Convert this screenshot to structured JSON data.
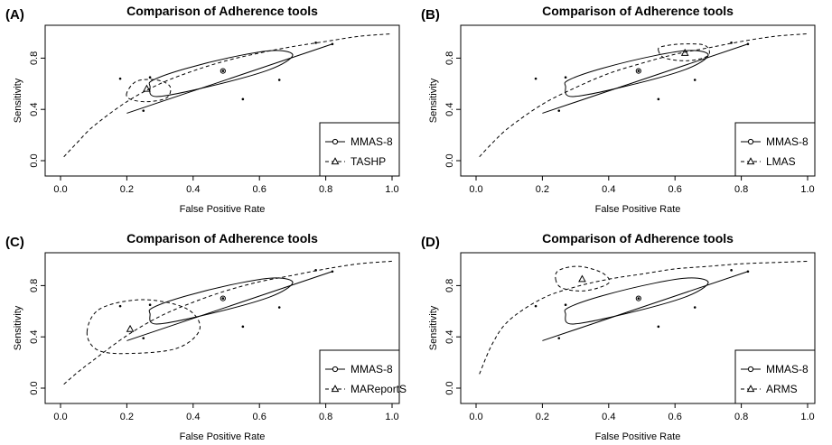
{
  "chart_data": [
    {
      "type": "scatter",
      "panel_label": "(A)",
      "title": "Comparison of Adherence tools",
      "xlabel": "False Positive Rate",
      "ylabel": "Sensitivity",
      "xlim": [
        0,
        1
      ],
      "ylim": [
        0,
        1
      ],
      "xticks": [
        "0.0",
        "0.2",
        "0.4",
        "0.6",
        "0.8",
        "1.0"
      ],
      "yticks": [
        "0.0",
        "0.4",
        "0.8"
      ],
      "legend_position": "bottom-right",
      "legend": [
        "MMAS-8",
        "TASHP"
      ],
      "study_points": [
        [
          0.18,
          0.64
        ],
        [
          0.25,
          0.39
        ],
        [
          0.27,
          0.65
        ],
        [
          0.49,
          0.7
        ],
        [
          0.55,
          0.48
        ],
        [
          0.66,
          0.63
        ],
        [
          0.77,
          0.92
        ],
        [
          0.82,
          0.91
        ]
      ],
      "mmas_summary": {
        "x": 0.49,
        "y": 0.7,
        "ellipse": [
          [
            0.27,
            0.58
          ],
          [
            0.29,
            0.5
          ],
          [
            0.45,
            0.58
          ],
          [
            0.63,
            0.71
          ],
          [
            0.7,
            0.82
          ],
          [
            0.65,
            0.86
          ],
          [
            0.54,
            0.82
          ],
          [
            0.38,
            0.72
          ],
          [
            0.28,
            0.63
          ]
        ]
      },
      "mmas_line": [
        [
          0.2,
          0.37
        ],
        [
          0.82,
          0.91
        ]
      ],
      "comp_summary": {
        "x": 0.26,
        "y": 0.56,
        "ellipse": [
          [
            0.2,
            0.53
          ],
          [
            0.21,
            0.48
          ],
          [
            0.26,
            0.46
          ],
          [
            0.32,
            0.49
          ],
          [
            0.33,
            0.58
          ],
          [
            0.29,
            0.63
          ],
          [
            0.23,
            0.62
          ]
        ]
      },
      "comp_curve": [
        [
          0.01,
          0.03
        ],
        [
          0.05,
          0.14
        ],
        [
          0.1,
          0.27
        ],
        [
          0.2,
          0.46
        ],
        [
          0.3,
          0.6
        ],
        [
          0.4,
          0.7
        ],
        [
          0.5,
          0.78
        ],
        [
          0.6,
          0.84
        ],
        [
          0.7,
          0.89
        ],
        [
          0.8,
          0.93
        ],
        [
          0.9,
          0.97
        ],
        [
          1.0,
          0.99
        ]
      ]
    },
    {
      "type": "scatter",
      "panel_label": "(B)",
      "title": "Comparison of Adherence tools",
      "xlabel": "False Positive Rate",
      "ylabel": "Sensitivity",
      "xlim": [
        0,
        1
      ],
      "ylim": [
        0,
        1
      ],
      "xticks": [
        "0.0",
        "0.2",
        "0.4",
        "0.6",
        "0.8",
        "1.0"
      ],
      "yticks": [
        "0.0",
        "0.4",
        "0.8"
      ],
      "legend_position": "bottom-right",
      "legend": [
        "MMAS-8",
        "LMAS"
      ],
      "study_points": [
        [
          0.18,
          0.64
        ],
        [
          0.25,
          0.39
        ],
        [
          0.27,
          0.65
        ],
        [
          0.49,
          0.7
        ],
        [
          0.55,
          0.48
        ],
        [
          0.66,
          0.63
        ],
        [
          0.77,
          0.92
        ],
        [
          0.82,
          0.91
        ]
      ],
      "mmas_summary": {
        "x": 0.49,
        "y": 0.7,
        "ellipse": [
          [
            0.27,
            0.58
          ],
          [
            0.29,
            0.5
          ],
          [
            0.45,
            0.58
          ],
          [
            0.63,
            0.71
          ],
          [
            0.7,
            0.82
          ],
          [
            0.65,
            0.86
          ],
          [
            0.54,
            0.82
          ],
          [
            0.38,
            0.72
          ],
          [
            0.28,
            0.63
          ]
        ]
      },
      "mmas_line": [
        [
          0.2,
          0.37
        ],
        [
          0.82,
          0.91
        ]
      ],
      "comp_summary": {
        "x": 0.63,
        "y": 0.84,
        "ellipse": [
          [
            0.55,
            0.86
          ],
          [
            0.57,
            0.8
          ],
          [
            0.64,
            0.78
          ],
          [
            0.7,
            0.82
          ],
          [
            0.69,
            0.9
          ],
          [
            0.62,
            0.91
          ],
          [
            0.56,
            0.89
          ]
        ]
      },
      "comp_curve": [
        [
          0.01,
          0.03
        ],
        [
          0.05,
          0.14
        ],
        [
          0.1,
          0.26
        ],
        [
          0.2,
          0.44
        ],
        [
          0.3,
          0.57
        ],
        [
          0.4,
          0.68
        ],
        [
          0.5,
          0.76
        ],
        [
          0.6,
          0.83
        ],
        [
          0.7,
          0.88
        ],
        [
          0.8,
          0.93
        ],
        [
          0.9,
          0.97
        ],
        [
          1.0,
          0.99
        ]
      ]
    },
    {
      "type": "scatter",
      "panel_label": "(C)",
      "title": "Comparison of Adherence tools",
      "xlabel": "False Positive Rate",
      "ylabel": "Sensitivity",
      "xlim": [
        0,
        1
      ],
      "ylim": [
        0,
        1
      ],
      "xticks": [
        "0.0",
        "0.2",
        "0.4",
        "0.6",
        "0.8",
        "1.0"
      ],
      "yticks": [
        "0.0",
        "0.4",
        "0.8"
      ],
      "legend_position": "bottom-right",
      "legend": [
        "MMAS-8",
        "MAReportS"
      ],
      "study_points": [
        [
          0.18,
          0.64
        ],
        [
          0.25,
          0.39
        ],
        [
          0.27,
          0.65
        ],
        [
          0.49,
          0.7
        ],
        [
          0.55,
          0.48
        ],
        [
          0.66,
          0.63
        ],
        [
          0.77,
          0.92
        ],
        [
          0.82,
          0.91
        ]
      ],
      "mmas_summary": {
        "x": 0.49,
        "y": 0.7,
        "ellipse": [
          [
            0.27,
            0.58
          ],
          [
            0.29,
            0.5
          ],
          [
            0.45,
            0.58
          ],
          [
            0.63,
            0.71
          ],
          [
            0.7,
            0.82
          ],
          [
            0.65,
            0.86
          ],
          [
            0.54,
            0.82
          ],
          [
            0.38,
            0.72
          ],
          [
            0.28,
            0.63
          ]
        ]
      },
      "mmas_line": [
        [
          0.2,
          0.37
        ],
        [
          0.82,
          0.91
        ]
      ],
      "comp_summary": {
        "x": 0.21,
        "y": 0.46,
        "ellipse": [
          [
            0.08,
            0.44
          ],
          [
            0.11,
            0.3
          ],
          [
            0.2,
            0.27
          ],
          [
            0.35,
            0.31
          ],
          [
            0.42,
            0.46
          ],
          [
            0.38,
            0.62
          ],
          [
            0.25,
            0.69
          ],
          [
            0.12,
            0.62
          ]
        ]
      },
      "comp_curve": [
        [
          0.01,
          0.03
        ],
        [
          0.05,
          0.12
        ],
        [
          0.1,
          0.22
        ],
        [
          0.2,
          0.41
        ],
        [
          0.3,
          0.56
        ],
        [
          0.4,
          0.67
        ],
        [
          0.5,
          0.76
        ],
        [
          0.6,
          0.83
        ],
        [
          0.7,
          0.88
        ],
        [
          0.8,
          0.93
        ],
        [
          0.9,
          0.97
        ],
        [
          1.0,
          0.99
        ]
      ]
    },
    {
      "type": "scatter",
      "panel_label": "(D)",
      "title": "Comparison of Adherence tools",
      "xlabel": "False Positive Rate",
      "ylabel": "Sensitivity",
      "xlim": [
        0,
        1
      ],
      "ylim": [
        0,
        1
      ],
      "xticks": [
        "0.0",
        "0.2",
        "0.4",
        "0.6",
        "0.8",
        "1.0"
      ],
      "yticks": [
        "0.0",
        "0.4",
        "0.8"
      ],
      "legend_position": "bottom-right",
      "legend": [
        "MMAS-8",
        "ARMS"
      ],
      "study_points": [
        [
          0.18,
          0.64
        ],
        [
          0.25,
          0.39
        ],
        [
          0.27,
          0.65
        ],
        [
          0.49,
          0.7
        ],
        [
          0.55,
          0.48
        ],
        [
          0.66,
          0.63
        ],
        [
          0.77,
          0.92
        ],
        [
          0.82,
          0.91
        ]
      ],
      "mmas_summary": {
        "x": 0.49,
        "y": 0.7,
        "ellipse": [
          [
            0.27,
            0.58
          ],
          [
            0.29,
            0.5
          ],
          [
            0.45,
            0.58
          ],
          [
            0.63,
            0.71
          ],
          [
            0.7,
            0.82
          ],
          [
            0.65,
            0.86
          ],
          [
            0.54,
            0.82
          ],
          [
            0.38,
            0.72
          ],
          [
            0.28,
            0.63
          ]
        ]
      },
      "mmas_line": [
        [
          0.2,
          0.37
        ],
        [
          0.82,
          0.91
        ]
      ],
      "comp_summary": {
        "x": 0.32,
        "y": 0.85,
        "ellipse": [
          [
            0.24,
            0.85
          ],
          [
            0.26,
            0.78
          ],
          [
            0.33,
            0.76
          ],
          [
            0.4,
            0.82
          ],
          [
            0.38,
            0.9
          ],
          [
            0.31,
            0.95
          ],
          [
            0.25,
            0.92
          ]
        ]
      },
      "comp_curve": [
        [
          0.01,
          0.11
        ],
        [
          0.05,
          0.35
        ],
        [
          0.1,
          0.53
        ],
        [
          0.2,
          0.7
        ],
        [
          0.3,
          0.79
        ],
        [
          0.4,
          0.85
        ],
        [
          0.5,
          0.89
        ],
        [
          0.6,
          0.93
        ],
        [
          0.7,
          0.95
        ],
        [
          0.8,
          0.97
        ],
        [
          0.9,
          0.98
        ],
        [
          1.0,
          0.99
        ]
      ]
    }
  ]
}
